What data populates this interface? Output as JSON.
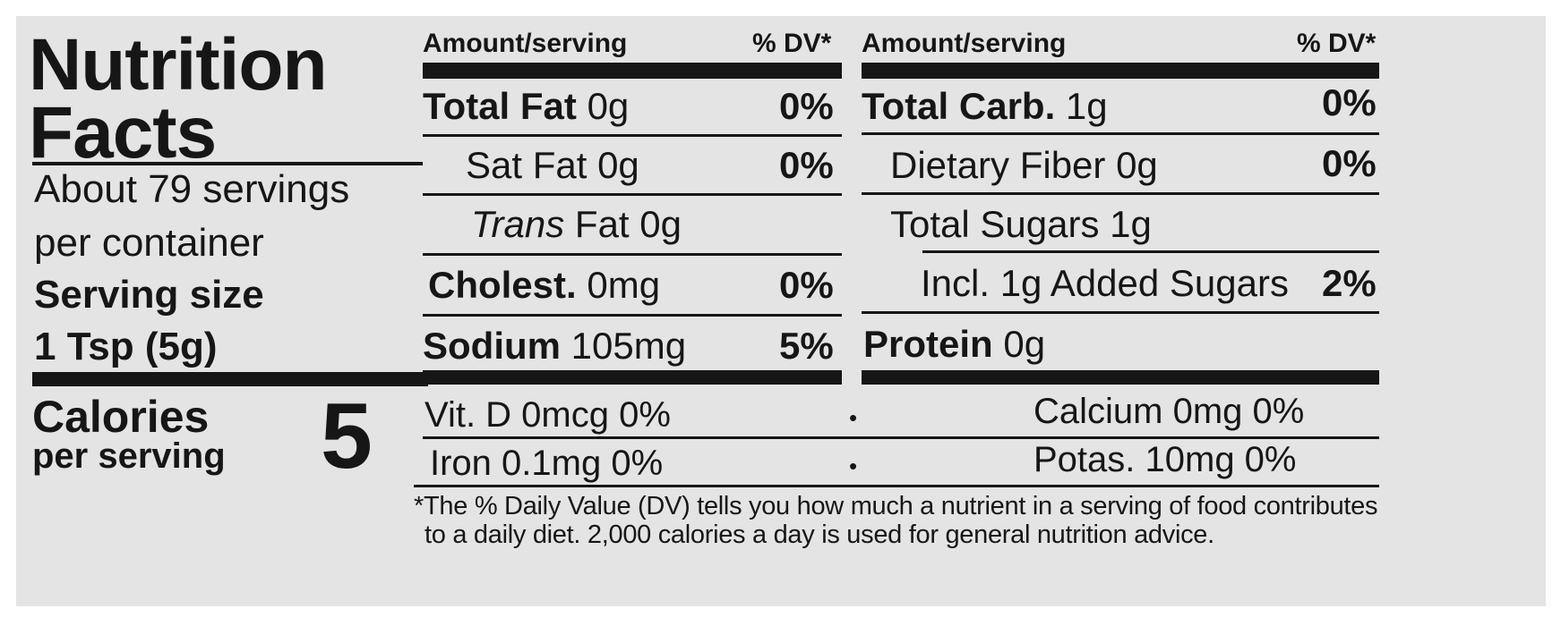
{
  "title_line1": "Nutrition",
  "title_line2": "Facts",
  "servings_line1": "About 79 servings",
  "servings_line2": "per container",
  "serving_size_label": "Serving size",
  "serving_size_value": "1 Tsp (5g)",
  "calories_label": "Calories",
  "calories_sub": "per serving",
  "calories_value": "5",
  "header": {
    "amount": "Amount/serving",
    "dv": "% DV*"
  },
  "left_rows": [
    {
      "name": "Total Fat",
      "amount": "0g",
      "dv": "0%"
    },
    {
      "name": "Sat Fat",
      "amount": "0g",
      "dv": "0%"
    },
    {
      "name_italic": "Trans",
      "name": "Fat",
      "amount": "0g",
      "dv": ""
    },
    {
      "name": "Cholest.",
      "amount": "0mg",
      "dv": "0%"
    },
    {
      "name": "Sodium",
      "amount": "105mg",
      "dv": "5%"
    }
  ],
  "right_rows": [
    {
      "name": "Total Carb.",
      "amount": "1g",
      "dv": "0%"
    },
    {
      "name": "Dietary Fiber",
      "amount": "0g",
      "dv": "0%"
    },
    {
      "name": "Total Sugars",
      "amount": "1g",
      "dv": ""
    },
    {
      "name": "Incl. 1g Added Sugars",
      "amount": "",
      "dv": "2%"
    },
    {
      "name": "Protein",
      "amount": "0g",
      "dv": ""
    }
  ],
  "micro": [
    {
      "left": "Vit. D 0mcg 0%",
      "sep": "•",
      "right": "Calcium 0mg 0%"
    },
    {
      "left": "Iron 0.1mg 0%",
      "sep": "•",
      "right": "Potas. 10mg 0%"
    }
  ],
  "footnote_line1": "*The % Daily Value (DV) tells you how much a nutrient in a serving of food contributes",
  "footnote_line2": "to a daily diet. 2,000 calories a day is used for general nutrition advice."
}
